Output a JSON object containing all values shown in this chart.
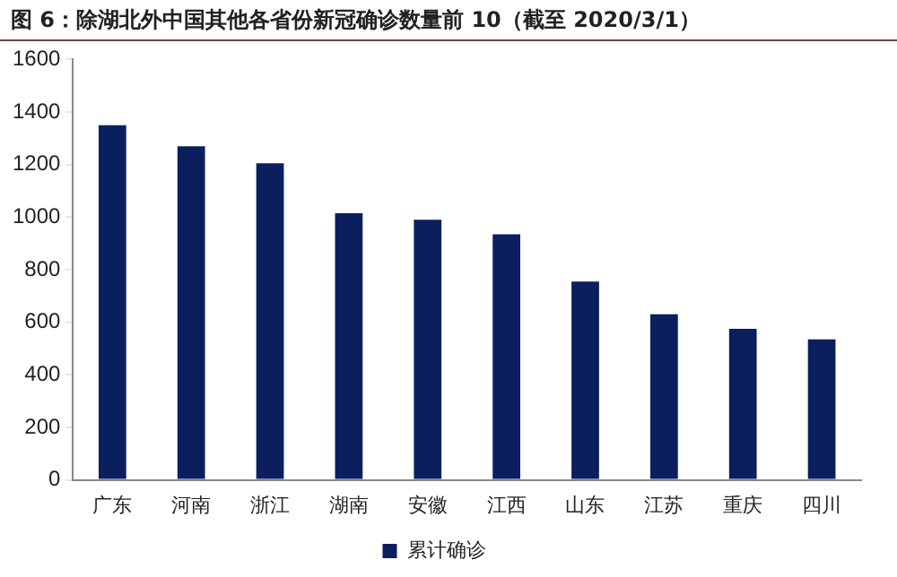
{
  "chart_data": {
    "type": "bar",
    "title": "图 6：除湖北外中国其他各省份新冠确诊数量前 10（截至 2020/3/1）",
    "categories": [
      "广东",
      "河南",
      "浙江",
      "湖南",
      "安徽",
      "江西",
      "山东",
      "江苏",
      "重庆",
      "四川"
    ],
    "series": [
      {
        "name": "累计确诊",
        "color": "#0b1f5e",
        "values": [
          1350,
          1270,
          1205,
          1015,
          990,
          935,
          755,
          630,
          575,
          535
        ]
      }
    ],
    "ylim": [
      0,
      1600
    ],
    "yticks": [
      0,
      200,
      400,
      600,
      800,
      1000,
      1200,
      1400,
      1600
    ],
    "grid": false,
    "legend": "bottom"
  }
}
